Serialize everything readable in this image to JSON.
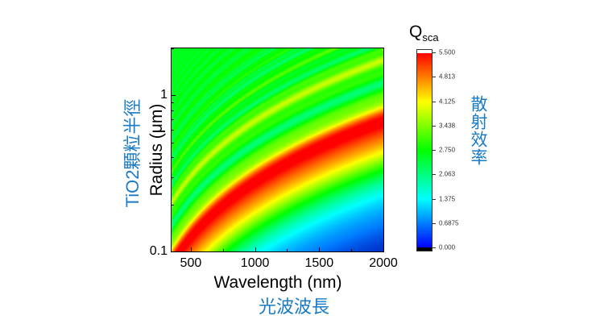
{
  "chart_data": {
    "type": "heatmap",
    "xlabel": "Wavelength (nm)",
    "xlabel_cn": "光波波長",
    "ylabel": "Radius (μm)",
    "ylabel_cn": "TiO2顆粒半徑",
    "xlim": [
      350,
      2000
    ],
    "ylim": [
      0.1,
      2.0
    ],
    "yscale": "log",
    "xticks": [
      "500",
      "1000",
      "1500",
      "2000"
    ],
    "xtick_values": [
      500,
      1000,
      1500,
      2000
    ],
    "yticks": [
      "0.1",
      "1"
    ],
    "ytick_values": [
      0.1,
      1
    ],
    "colorbar": {
      "title_main": "Q",
      "title_sub": "sca",
      "label_cn": "散射效率",
      "range": [
        0,
        5.5
      ],
      "ticks": [
        "0.000",
        "0.6875",
        "1.375",
        "2.063",
        "2.750",
        "3.438",
        "4.125",
        "4.813",
        "5.500"
      ],
      "tick_values": [
        0,
        0.6875,
        1.375,
        2.063,
        2.75,
        3.438,
        4.125,
        4.813,
        5.5
      ],
      "colormap": [
        "#000000",
        "#0000ff",
        "#00ffff",
        "#00ff00",
        "#ffff00",
        "#ff0000",
        "#ffffff"
      ]
    },
    "description_peak": {
      "max_band_points": [
        [
          430,
          0.1
        ],
        [
          1000,
          0.3
        ],
        [
          2000,
          0.65
        ]
      ],
      "peak_value": 5.5
    },
    "grid": false
  }
}
